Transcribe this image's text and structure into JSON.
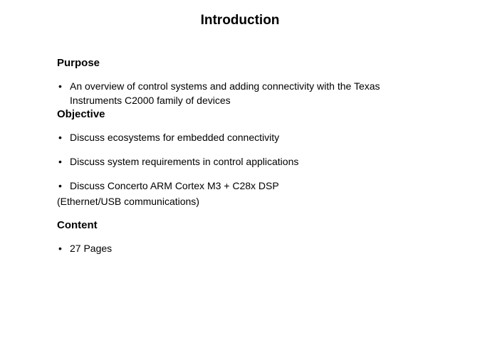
{
  "title": "Introduction",
  "sections": [
    {
      "heading": "Purpose",
      "items": [
        {
          "text": "An overview of control systems and adding connectivity with the Texas Instruments C2000 family of devices",
          "continuation": null
        }
      ]
    },
    {
      "heading": "Objective",
      "items": [
        {
          "text": "Discuss ecosystems for embedded connectivity",
          "continuation": null
        },
        {
          "text": "Discuss system requirements in control applications",
          "continuation": null
        },
        {
          "text": "Discuss Concerto ARM Cortex M3 + C28x DSP",
          "continuation": "(Ethernet/USB communications)"
        }
      ]
    },
    {
      "heading": "Content",
      "items": [
        {
          "text": "27 Pages",
          "continuation": null
        }
      ]
    }
  ],
  "styling": {
    "background_color": "#ffffff",
    "text_color": "#000000",
    "title_fontsize": 19,
    "heading_fontsize": 15,
    "body_fontsize": 14,
    "font_family": "Verdana"
  }
}
